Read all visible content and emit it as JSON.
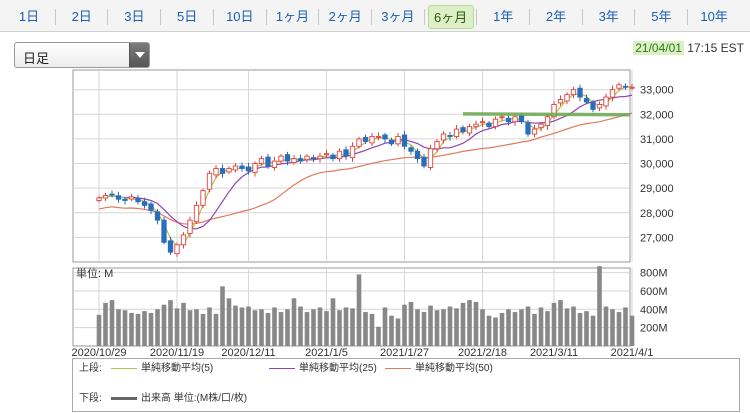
{
  "tabs": {
    "items": [
      {
        "label": "1日"
      },
      {
        "label": "2日"
      },
      {
        "label": "3日"
      },
      {
        "label": "5日"
      },
      {
        "label": "10日"
      },
      {
        "label": "1ヶ月"
      },
      {
        "label": "2ヶ月"
      },
      {
        "label": "3ヶ月"
      },
      {
        "label": "6ヶ月"
      },
      {
        "label": "1年"
      },
      {
        "label": "2年"
      },
      {
        "label": "3年"
      },
      {
        "label": "5年"
      },
      {
        "label": "10年"
      }
    ],
    "active": "6ヶ月"
  },
  "selector": {
    "value": "日足"
  },
  "timestamp": {
    "date": "21/04/01",
    "time": "17:15 EST"
  },
  "price_chart": {
    "y_ticks": [
      "33,000",
      "32,000",
      "31,000",
      "30,000",
      "29,000",
      "28,000",
      "27,000"
    ],
    "y_values": [
      33000,
      32000,
      31000,
      30000,
      29000,
      28000,
      27000
    ],
    "ylim": [
      26000,
      33800
    ],
    "annotation_line": {
      "value": 32000,
      "color": "#6aa84f"
    }
  },
  "volume_chart": {
    "unit_label": "単位: M",
    "y_ticks": [
      "800M",
      "600M",
      "400M",
      "200M"
    ],
    "y_values": [
      800,
      600,
      400,
      200
    ],
    "ylim": [
      0,
      850
    ]
  },
  "x_axis": {
    "labels": [
      "2020/10/29",
      "2020/11/19",
      "2020/12/11",
      "2021/1/5",
      "2021/1/27",
      "2021/2/18",
      "2021/3/11",
      "2021/4/1"
    ]
  },
  "legend": {
    "upper_label": "上段:",
    "lower_label": "下段:",
    "series": [
      {
        "name": "単純移動平均(5)",
        "color": "#b5c24a"
      },
      {
        "name": "単純移動平均(25)",
        "color": "#8e44ad"
      },
      {
        "name": "単純移動平均(50)",
        "color": "#e07a5f"
      }
    ],
    "volume_name": "出来高 単位:(M株/口/枚)",
    "volume_color": "#666666"
  },
  "colors": {
    "up": "#e0443e",
    "down": "#2a6ebb",
    "grid": "#d6d6d6",
    "volume": "#888888"
  },
  "chart_data": [
    {
      "type": "candlestick",
      "ylim": [
        26000,
        33800
      ],
      "y_ticks": [
        27000,
        28000,
        29000,
        30000,
        31000,
        32000,
        33000
      ],
      "x_labels": [
        "2020/10/29",
        "2020/11/19",
        "2020/12/11",
        "2021/1/5",
        "2021/1/27",
        "2021/2/18",
        "2021/3/11",
        "2021/4/1"
      ],
      "close": [
        28600,
        28700,
        28750,
        28550,
        28500,
        28650,
        28450,
        28300,
        28100,
        27700,
        26800,
        26400,
        26700,
        27100,
        27700,
        28300,
        28900,
        29600,
        29800,
        29600,
        29800,
        29900,
        29800,
        29700,
        30000,
        30200,
        29900,
        30100,
        30300,
        30100,
        30200,
        30100,
        30300,
        30200,
        30300,
        30400,
        30200,
        30500,
        30300,
        30700,
        31000,
        30900,
        31100,
        31100,
        31000,
        30800,
        31100,
        30700,
        30500,
        30200,
        29900,
        30600,
        30900,
        31200,
        31100,
        31400,
        31300,
        31500,
        31600,
        31700,
        31500,
        31800,
        31900,
        31700,
        31900,
        31700,
        31200,
        31400,
        31600,
        31900,
        32400,
        32600,
        32800,
        33000,
        32700,
        32500,
        32200,
        32400,
        32700,
        33000,
        33200,
        33100,
        33100
      ]
    },
    {
      "type": "bar",
      "name": "出来高",
      "values": [
        340,
        470,
        500,
        400,
        390,
        360,
        350,
        380,
        360,
        400,
        450,
        500,
        410,
        470,
        390,
        400,
        350,
        420,
        350,
        650,
        520,
        440,
        420,
        430,
        390,
        400,
        360,
        420,
        370,
        400,
        520,
        430,
        370,
        400,
        420,
        380,
        520,
        390,
        420,
        410,
        780,
        370,
        350,
        210,
        420,
        330,
        300,
        450,
        480,
        400,
        370,
        440,
        390,
        400,
        430,
        410,
        470,
        500,
        480,
        400,
        330,
        310,
        360,
        400,
        370,
        400,
        430,
        350,
        420,
        380,
        470,
        500,
        410,
        430,
        360,
        380,
        330,
        870,
        430,
        400,
        370,
        420,
        330
      ]
    }
  ]
}
